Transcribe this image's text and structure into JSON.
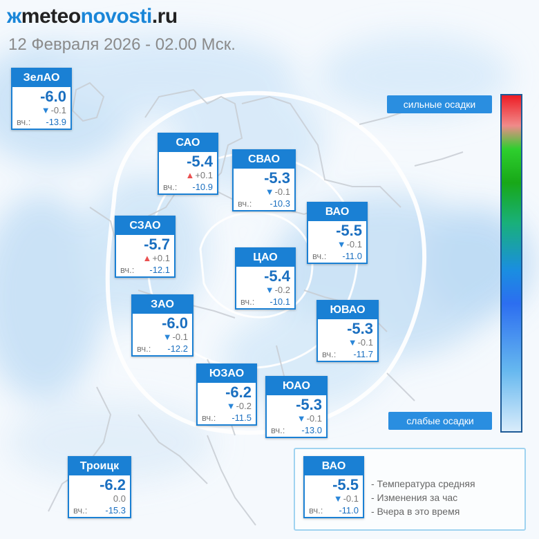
{
  "header": {
    "logo_mark": "ж",
    "logo_p1": "meteo",
    "logo_p2": "novosti",
    "logo_p3": ".ru",
    "date": "12 Февраля 2026 - 02.00 Мск."
  },
  "scale": {
    "top_label": "сильные осадки",
    "bottom_label": "слабые осадки"
  },
  "yday_label": "вч.:",
  "districts": [
    {
      "id": "zelao",
      "name": "ЗелАО",
      "temp": "-6.0",
      "dir": "down",
      "change": "-0.1",
      "yesterday": "-13.9"
    },
    {
      "id": "sao",
      "name": "САО",
      "temp": "-5.4",
      "dir": "up",
      "change": "+0.1",
      "yesterday": "-10.9"
    },
    {
      "id": "svao",
      "name": "СВАО",
      "temp": "-5.3",
      "dir": "down",
      "change": "-0.1",
      "yesterday": "-10.3"
    },
    {
      "id": "vao",
      "name": "ВАО",
      "temp": "-5.5",
      "dir": "down",
      "change": "-0.1",
      "yesterday": "-11.0"
    },
    {
      "id": "szao",
      "name": "СЗАО",
      "temp": "-5.7",
      "dir": "up",
      "change": "+0.1",
      "yesterday": "-12.1"
    },
    {
      "id": "cao",
      "name": "ЦАО",
      "temp": "-5.4",
      "dir": "down",
      "change": "-0.2",
      "yesterday": "-10.1"
    },
    {
      "id": "zao",
      "name": "ЗАО",
      "temp": "-6.0",
      "dir": "down",
      "change": "-0.1",
      "yesterday": "-12.2"
    },
    {
      "id": "yuvao",
      "name": "ЮВАО",
      "temp": "-5.3",
      "dir": "down",
      "change": "-0.1",
      "yesterday": "-11.7"
    },
    {
      "id": "yuzao",
      "name": "ЮЗАО",
      "temp": "-6.2",
      "dir": "down",
      "change": "-0.2",
      "yesterday": "-11.5"
    },
    {
      "id": "yuao",
      "name": "ЮАО",
      "temp": "-5.3",
      "dir": "down",
      "change": "-0.1",
      "yesterday": "-13.0"
    },
    {
      "id": "troitsk",
      "name": "Троицк",
      "temp": "-6.2",
      "dir": "none",
      "change": "0.0",
      "yesterday": "-15.3"
    }
  ],
  "legend": {
    "sample": {
      "name": "ВАО",
      "temp": "-5.5",
      "dir": "down",
      "change": "-0.1",
      "yesterday": "-11.0"
    },
    "line1": "- Температура средняя",
    "line2": "- Изменения за час",
    "line3": "- Вчера в это время"
  },
  "colors": {
    "card_blue": "#1a80d4",
    "temp_text": "#1a6fc0",
    "arrow_down": "#2a86d8",
    "arrow_up": "#ea5050",
    "precip_light": "#cfe6f8"
  }
}
